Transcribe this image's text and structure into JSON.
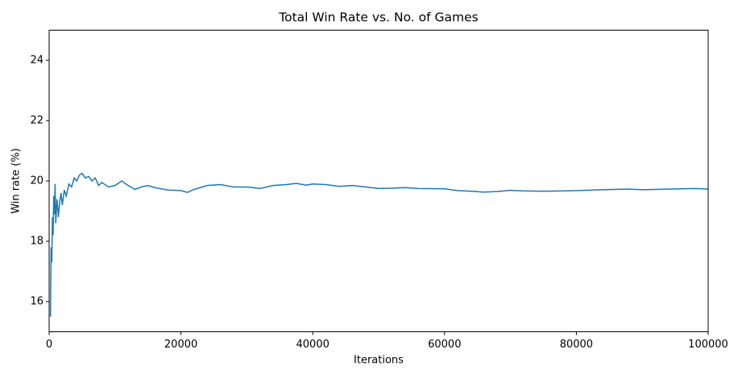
{
  "chart_data": {
    "type": "line",
    "title": "Total Win Rate vs. No. of Games",
    "x_label": "Iterations",
    "y_label": "Win rate (%)",
    "color": "#1f77b4",
    "x": [
      200,
      300,
      400,
      500,
      600,
      700,
      800,
      900,
      1000,
      1200,
      1400,
      1600,
      1800,
      2000,
      2300,
      2600,
      3000,
      3400,
      3800,
      4200,
      4600,
      5000,
      5500,
      6000,
      6500,
      7000,
      7500,
      8000,
      9000,
      10000,
      11000,
      12000,
      13000,
      14000,
      15000,
      16000,
      18000,
      20000,
      21000,
      22000,
      24000,
      26000,
      28000,
      30000,
      32000,
      34000,
      36000,
      37500,
      39000,
      40000,
      42000,
      44000,
      46000,
      48000,
      50000,
      52000,
      54000,
      56000,
      60000,
      62000,
      64000,
      66000,
      68000,
      70000,
      72000,
      75000,
      78000,
      80000,
      84000,
      88000,
      90000,
      94000,
      98000,
      100000
    ],
    "values": [
      15.5,
      17.8,
      17.3,
      18.8,
      18.2,
      19.5,
      18.9,
      19.9,
      18.6,
      19.4,
      18.8,
      19.3,
      19.6,
      19.2,
      19.7,
      19.5,
      19.9,
      19.8,
      20.1,
      20.0,
      20.2,
      20.25,
      20.1,
      20.15,
      20.0,
      20.1,
      19.85,
      19.95,
      19.8,
      19.85,
      20.0,
      19.85,
      19.72,
      19.8,
      19.85,
      19.78,
      19.7,
      19.68,
      19.62,
      19.72,
      19.85,
      19.88,
      19.8,
      19.8,
      19.75,
      19.85,
      19.88,
      19.92,
      19.86,
      19.9,
      19.88,
      19.82,
      19.85,
      19.8,
      19.75,
      19.76,
      19.78,
      19.75,
      19.74,
      19.68,
      19.66,
      19.63,
      19.65,
      19.69,
      19.67,
      19.66,
      19.67,
      19.68,
      19.71,
      19.73,
      19.71,
      19.73,
      19.75,
      19.73
    ],
    "xlim": [
      0,
      100000
    ],
    "ylim": [
      15,
      25
    ],
    "xticks": [
      0,
      20000,
      40000,
      60000,
      80000,
      100000
    ],
    "yticks": [
      16,
      18,
      20,
      22,
      24
    ]
  }
}
